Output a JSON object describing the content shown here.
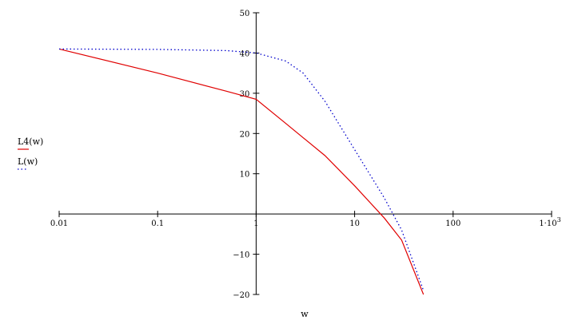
{
  "chart_data": {
    "type": "line",
    "xscale": "log",
    "xlim": [
      0.01,
      1000
    ],
    "ylim": [
      -20,
      50
    ],
    "xlabel": "w",
    "ylabel": "",
    "x_ticks": [
      {
        "value": 0.01,
        "label": "0.01"
      },
      {
        "value": 0.1,
        "label": "0.1"
      },
      {
        "value": 1,
        "label": "1"
      },
      {
        "value": 10,
        "label": "10"
      },
      {
        "value": 100,
        "label": "100"
      },
      {
        "value": 1000,
        "label": "1·10",
        "sup": "3"
      }
    ],
    "y_ticks": [
      {
        "value": 50,
        "label": "50"
      },
      {
        "value": 40,
        "label": "40"
      },
      {
        "value": 30,
        "label": "30"
      },
      {
        "value": 20,
        "label": "20"
      },
      {
        "value": 10,
        "label": "10"
      },
      {
        "value": -10,
        "label": "−10"
      },
      {
        "value": -20,
        "label": "−20"
      }
    ],
    "legend_position": "left",
    "series": [
      {
        "name": "L4(w)",
        "color": "#e00000",
        "style": "solid",
        "x": [
          0.01,
          0.1,
          0.5,
          1,
          2,
          5,
          10,
          20,
          30,
          50
        ],
        "y": [
          41,
          35,
          30.5,
          28.5,
          22.5,
          14.5,
          7,
          -1,
          -6.5,
          -20
        ]
      },
      {
        "name": "L(w)",
        "color": "#0000cc",
        "style": "dotted",
        "x": [
          0.01,
          0.1,
          0.5,
          1,
          2,
          3,
          5,
          10,
          20,
          30,
          50
        ],
        "y": [
          41,
          40.9,
          40.6,
          40,
          38,
          35,
          28,
          16,
          4,
          -4,
          -19
        ]
      }
    ]
  }
}
